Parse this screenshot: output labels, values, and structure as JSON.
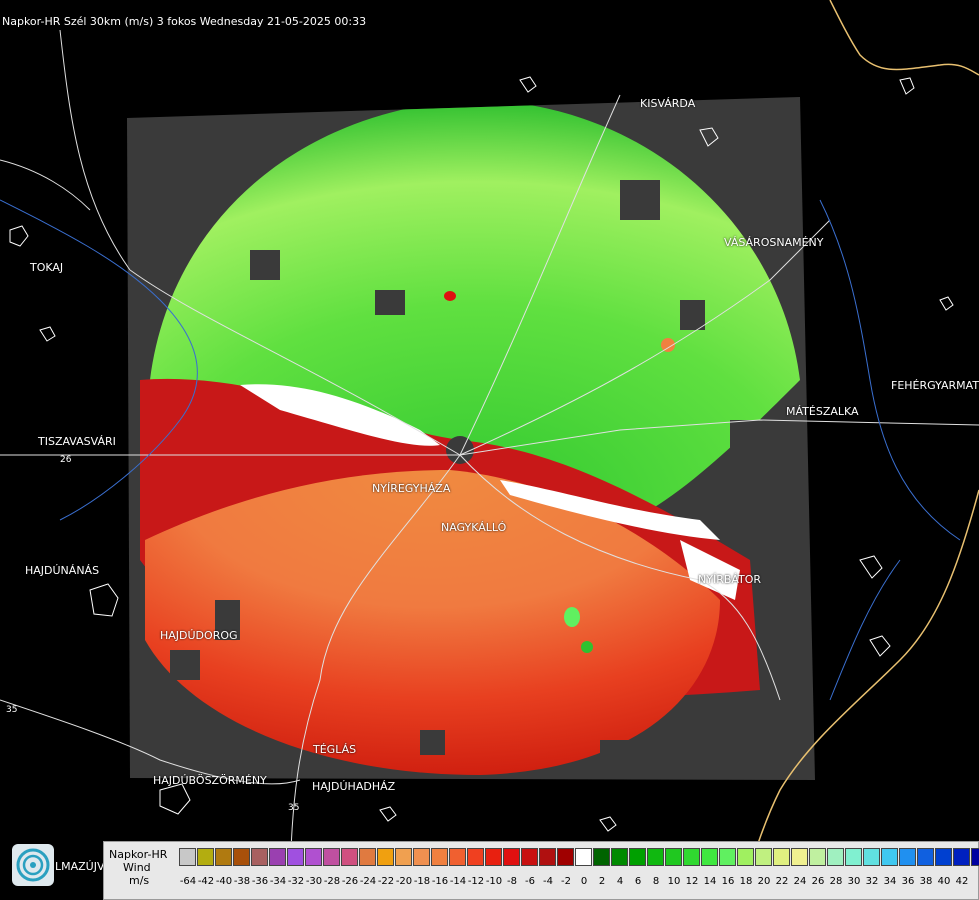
{
  "title": "Napkor-HR Szél 30km (m/s) 3 fokos Wednesday 21-05-2025 00:33",
  "cities": [
    {
      "name": "KISVÁRDA"
    },
    {
      "name": "TOKAJ"
    },
    {
      "name": "VÁSÁROSNAMÉNY"
    },
    {
      "name": "FEHÉRGYARMAT"
    },
    {
      "name": "MÁTÉSZALKA"
    },
    {
      "name": "TISZAVASVÁRI"
    },
    {
      "name": "NYÍREGYHÁZA"
    },
    {
      "name": "NAGYKÁLLÓ"
    },
    {
      "name": "NYÍRBÁTOR"
    },
    {
      "name": "HAJDÚNÁNÁS"
    },
    {
      "name": "HAJDÚDOROG"
    },
    {
      "name": "TÉGLÁS"
    },
    {
      "name": "HAJDÚBÖSZÖRMÉNY"
    },
    {
      "name": "HAJDÚHADHÁZ"
    }
  ],
  "road_numbers": [
    "26",
    "35",
    "35"
  ],
  "logo_text": "LMAZÚJVÁR",
  "legend": {
    "line1": "Napkor-HR",
    "line2": "Wind",
    "line3": "m/s",
    "ticks": [
      "-64",
      "-42",
      "-40",
      "-38",
      "-36",
      "-34",
      "-32",
      "-30",
      "-28",
      "-26",
      "-24",
      "-22",
      "-20",
      "-18",
      "-16",
      "-14",
      "-12",
      "-10",
      "-8",
      "-6",
      "-4",
      "-2",
      "0",
      "2",
      "4",
      "6",
      "8",
      "10",
      "12",
      "14",
      "16",
      "18",
      "20",
      "22",
      "24",
      "26",
      "28",
      "30",
      "32",
      "34",
      "36",
      "38",
      "40",
      "42"
    ],
    "colors": [
      "#c8c8c8",
      "#b3ad10",
      "#b07a10",
      "#a8500a",
      "#a86060",
      "#9a40b0",
      "#a050e0",
      "#b050d0",
      "#c050a0",
      "#d05080",
      "#e07a40",
      "#f0a010",
      "#f0a050",
      "#f09050",
      "#f08040",
      "#f06030",
      "#f04020",
      "#e82010",
      "#e01010",
      "#c81010",
      "#b01010",
      "#a00000",
      "#ffffff",
      "#006400",
      "#008a00",
      "#00a000",
      "#10b810",
      "#20c820",
      "#30d830",
      "#40e840",
      "#60f060",
      "#a0f060",
      "#c0f080",
      "#e0f080",
      "#f0f090",
      "#c0f0a0",
      "#a0f0c0",
      "#80f0d0",
      "#60e0e0",
      "#40c8f0",
      "#2090f0",
      "#1060e0",
      "#0040d0",
      "#0020c0",
      "#0000a0"
    ]
  }
}
